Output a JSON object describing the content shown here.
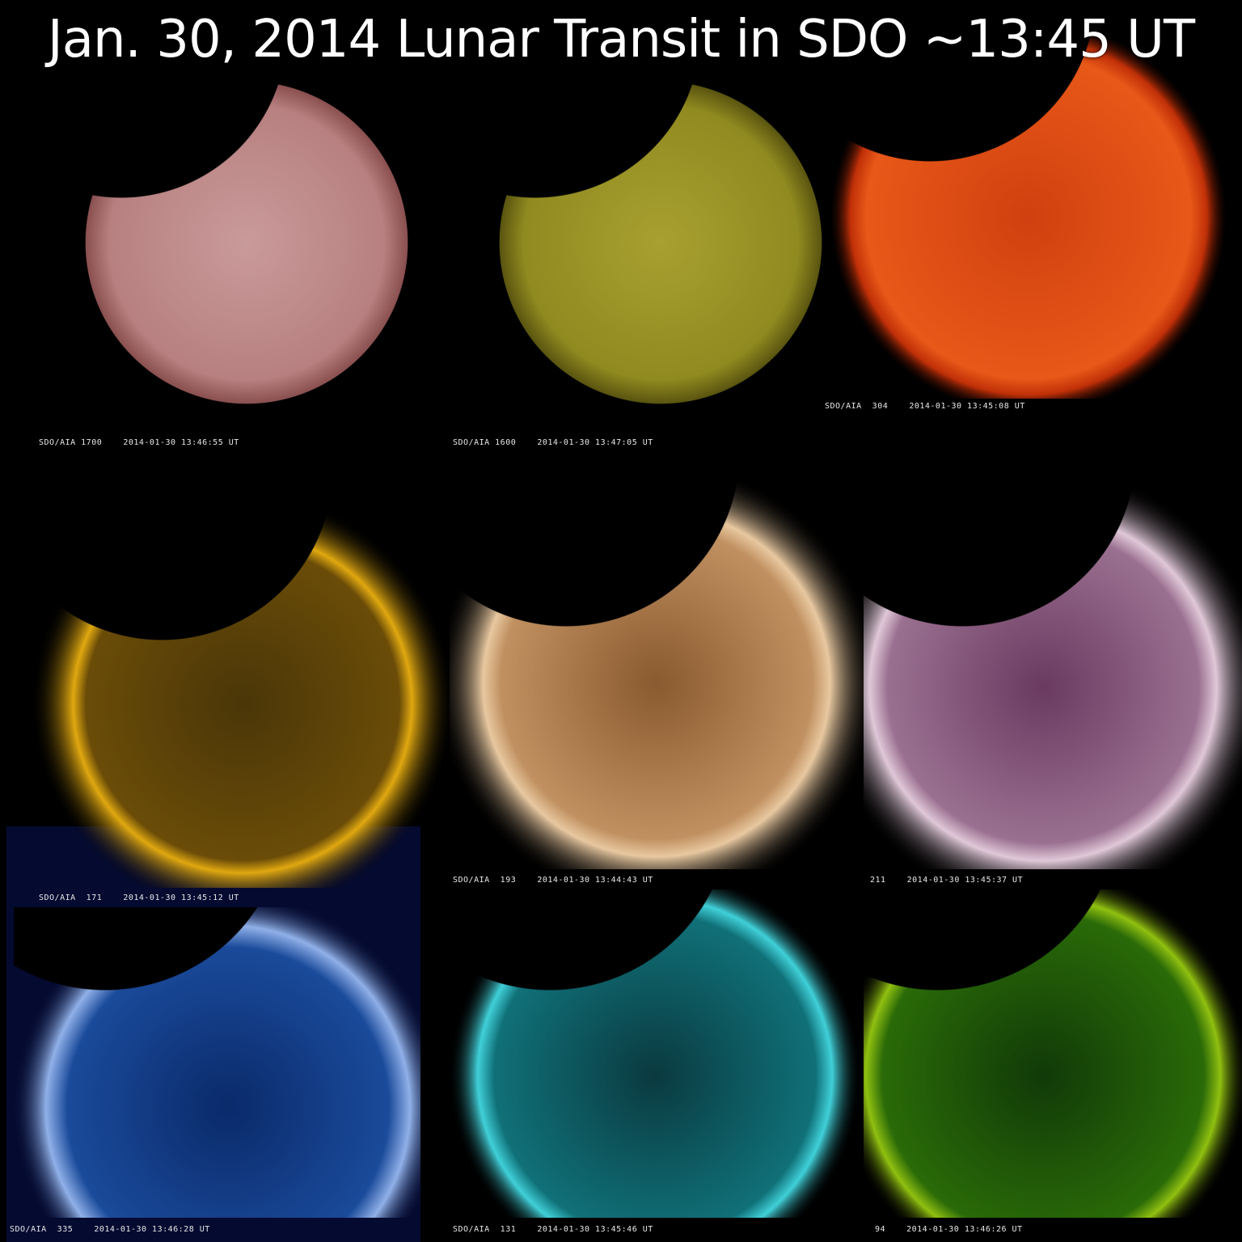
{
  "title": "Jan. 30, 2014 Lunar Transit in SDO ~13:45 UT",
  "panels": [
    {
      "label": "SDO/AIA 1700    2014-01-30 13:46:55 UT",
      "color": "#c98a8a"
    },
    {
      "label": "SDO/AIA 1600    2014-01-30 13:47:05 UT",
      "color": "#a8a030"
    },
    {
      "label": "SDO/AIA  304    2014-01-30 13:45:08 UT",
      "color": "#e0521a"
    },
    {
      "label": "SDO/AIA  171    2014-01-30 13:45:12 UT",
      "color": "#c89a10"
    },
    {
      "label": "SDO/AIA  193    2014-01-30 13:44:43 UT",
      "color": "#b8804a"
    },
    {
      "label": "211    2014-01-30 13:45:37 UT",
      "color": "#a87898"
    },
    {
      "label": "SDO/AIA  335    2014-01-30 13:46:28 UT",
      "color": "#1e4c9a"
    },
    {
      "label": "SDO/AIA  131    2014-01-30 13:45:46 UT",
      "color": "#1a8a90"
    },
    {
      "label": "94    2014-01-30 13:46:26 UT",
      "color": "#3a7a10"
    }
  ]
}
